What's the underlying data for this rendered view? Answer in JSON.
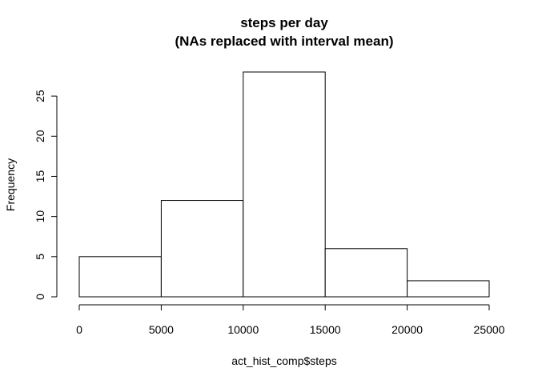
{
  "chart_data": {
    "type": "bar",
    "histogram": true,
    "title": "steps per day",
    "subtitle": "(NAs replaced with interval mean)",
    "xlabel": "act_hist_comp$steps",
    "ylabel": "Frequency",
    "bins": [
      {
        "from": 0,
        "to": 5000,
        "count": 5
      },
      {
        "from": 5000,
        "to": 10000,
        "count": 12
      },
      {
        "from": 10000,
        "to": 15000,
        "count": 28
      },
      {
        "from": 15000,
        "to": 20000,
        "count": 6
      },
      {
        "from": 20000,
        "to": 25000,
        "count": 2
      }
    ],
    "xlim": [
      0,
      25000
    ],
    "ylim": [
      0,
      28
    ],
    "x_ticks": [
      0,
      5000,
      10000,
      15000,
      20000,
      25000
    ],
    "x_tick_labels": [
      "0",
      "5000",
      "10000",
      "15000",
      "20000",
      "25000"
    ],
    "y_ticks": [
      0,
      5,
      10,
      15,
      20,
      25
    ],
    "y_tick_labels": [
      "0",
      "5",
      "10",
      "15",
      "20",
      "25"
    ],
    "grid": false,
    "bar_fill": "#ffffff",
    "bar_stroke": "#000000"
  }
}
